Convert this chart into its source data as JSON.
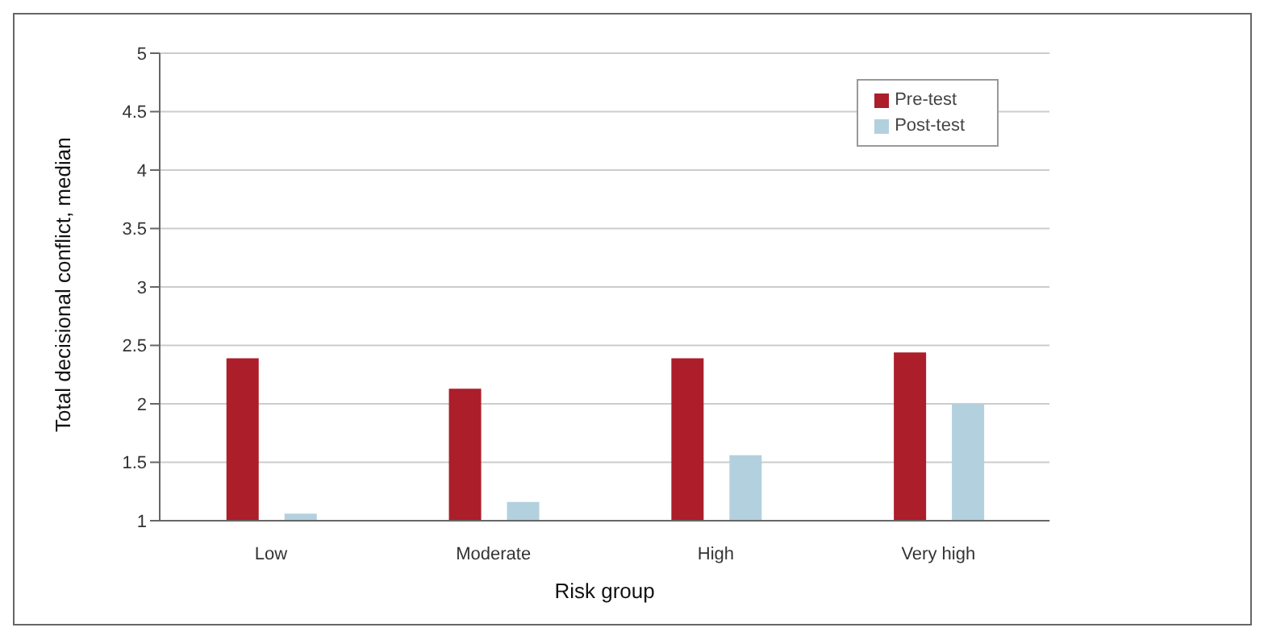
{
  "chart_data": {
    "type": "bar",
    "xlabel": "Risk group",
    "ylabel": "Total decisional conflict, median",
    "categories": [
      "Low",
      "Moderate",
      "High",
      "Very high"
    ],
    "series": [
      {
        "name": "Pre-test",
        "color": "#ab1e2a",
        "values": [
          2.39,
          2.13,
          2.39,
          2.44
        ]
      },
      {
        "name": "Post-test",
        "color": "#b3d0de",
        "values": [
          1.06,
          1.16,
          1.56,
          2.0
        ]
      }
    ],
    "ylim": [
      1,
      5
    ],
    "yticks": [
      1,
      1.5,
      2,
      2.5,
      3,
      3.5,
      4,
      4.5,
      5
    ],
    "grid": "y",
    "legend": "top right"
  }
}
